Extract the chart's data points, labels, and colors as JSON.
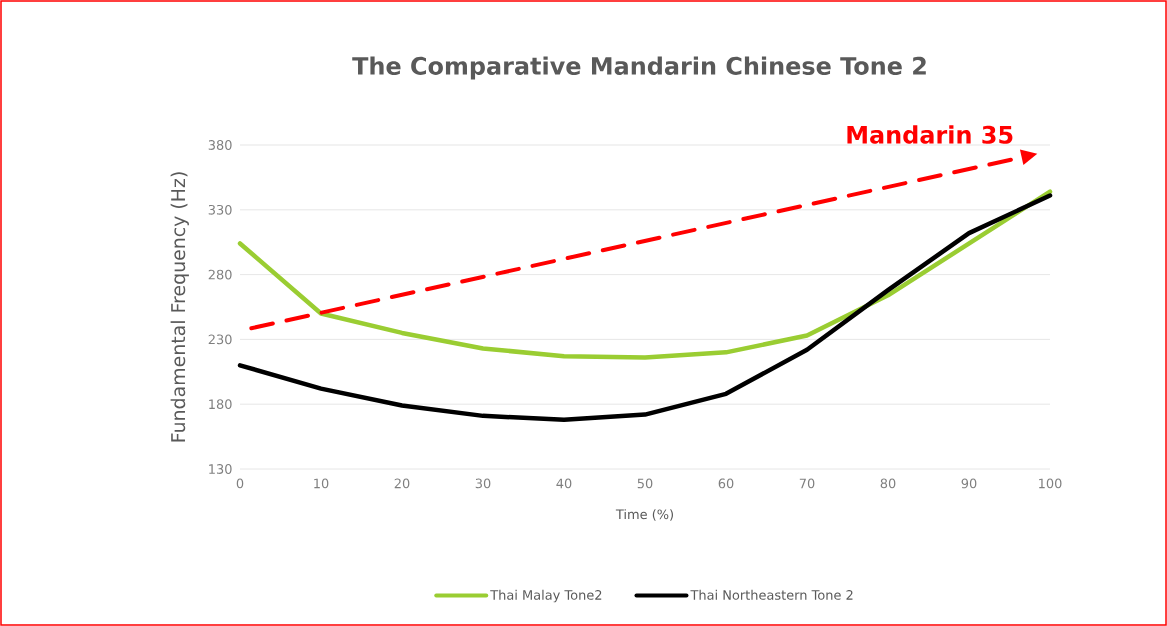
{
  "chart_data": {
    "type": "line",
    "title": "The Comparative Mandarin Chinese Tone 2",
    "xlabel": "Time (%)",
    "ylabel": "Fundamental Frequency (Hz)",
    "x": [
      0,
      10,
      20,
      30,
      40,
      50,
      60,
      70,
      80,
      90,
      100
    ],
    "series": [
      {
        "name": "Thai Malay Tone2",
        "color": "#9acd32",
        "values": [
          304,
          250,
          235,
          223,
          217,
          216,
          220,
          233,
          264,
          304,
          344
        ]
      },
      {
        "name": "Thai Northeastern Tone 2",
        "color": "#000000",
        "values": [
          210,
          192,
          179,
          171,
          168,
          172,
          188,
          222,
          268,
          312,
          341
        ]
      },
      {
        "color": "#ff0000",
        "line_style": "dashed",
        "x": [
          1.4,
          96.5
        ],
        "values": [
          238.6,
          370.5
        ]
      }
    ],
    "annotations": [
      "Mandarin 35"
    ],
    "xlim": [
      0,
      100
    ],
    "xticks": [
      0,
      10,
      20,
      30,
      40,
      50,
      60,
      70,
      80,
      90,
      100
    ],
    "ylim": [
      130,
      380
    ],
    "yticks": [
      130,
      180,
      230,
      280,
      330,
      380
    ],
    "grid": "y",
    "legend": "bottom"
  }
}
